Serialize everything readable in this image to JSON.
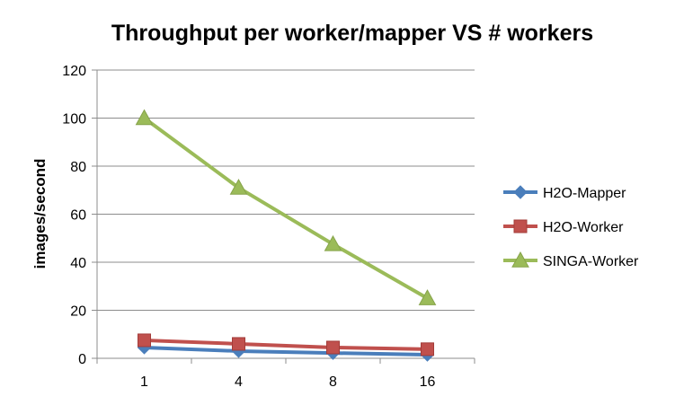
{
  "chart_data": {
    "type": "line",
    "title": "Throughput per worker/mapper VS # workers",
    "xlabel": "",
    "ylabel": "images/second",
    "categories": [
      "1",
      "4",
      "8",
      "16"
    ],
    "ylim": [
      0,
      120
    ],
    "yticks": [
      0,
      20,
      40,
      60,
      80,
      100,
      120
    ],
    "grid": true,
    "legend_position": "right",
    "series": [
      {
        "name": "H2O-Mapper",
        "values": [
          4.5,
          3,
          2.2,
          1.5
        ],
        "color": "#4a7ebb",
        "marker": "diamond"
      },
      {
        "name": "H2O-Worker",
        "values": [
          7.5,
          6,
          4.5,
          3.8
        ],
        "color": "#c0504d",
        "marker": "square"
      },
      {
        "name": "SINGA-Worker",
        "values": [
          100,
          71,
          47.5,
          25
        ],
        "color": "#9bbb59",
        "marker": "triangle"
      }
    ]
  }
}
